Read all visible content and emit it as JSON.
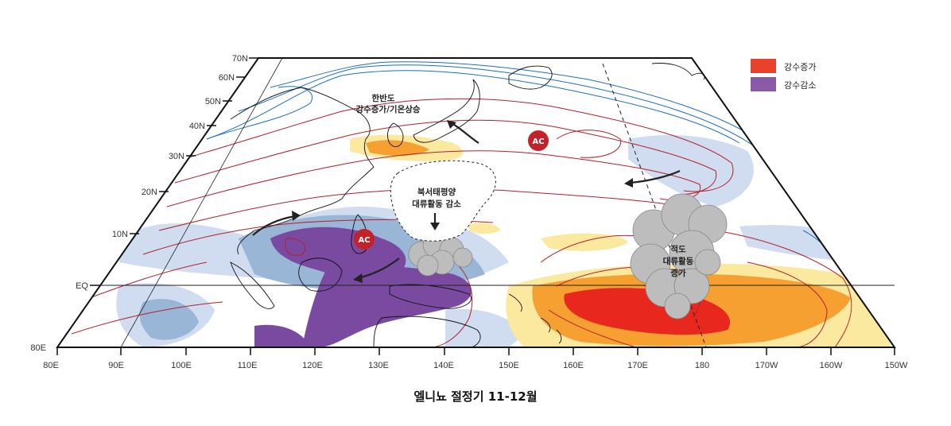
{
  "caption": "엘니뇨 절정기 11-12월",
  "legend": [
    {
      "label": "강수증가",
      "color": "#e8412c"
    },
    {
      "label": "강수감소",
      "color": "#8a5aa8"
    }
  ],
  "lat_labels": [
    "70N",
    "60N",
    "50N",
    "40N",
    "30N",
    "20N",
    "10N",
    "EQ",
    "80E"
  ],
  "lon_labels": [
    "80E",
    "90E",
    "100E",
    "110E",
    "120E",
    "130E",
    "140E",
    "150E",
    "160E",
    "170E",
    "180",
    "170W",
    "160W",
    "150W"
  ],
  "annotations": {
    "korea_line1": "한반도",
    "korea_line2": "강수증가/기온상승",
    "wnp_line1": "북서태평양",
    "wnp_line2": "대류활동 감소",
    "eq_line1": "적도",
    "eq_line2": "대류활동",
    "eq_line3": "증가"
  },
  "anticyclone_label": "AC",
  "colors": {
    "precip_increase_light": "#fbe9a0",
    "precip_increase_mid": "#f5a030",
    "precip_increase_strong": "#e8281e",
    "precip_decrease_light": "#d0dcef",
    "precip_decrease_mid": "#9ab6d6",
    "precip_decrease_strong": "#7a4aa0",
    "contour_red": "#b3202a",
    "contour_blue": "#1f6fbf"
  }
}
